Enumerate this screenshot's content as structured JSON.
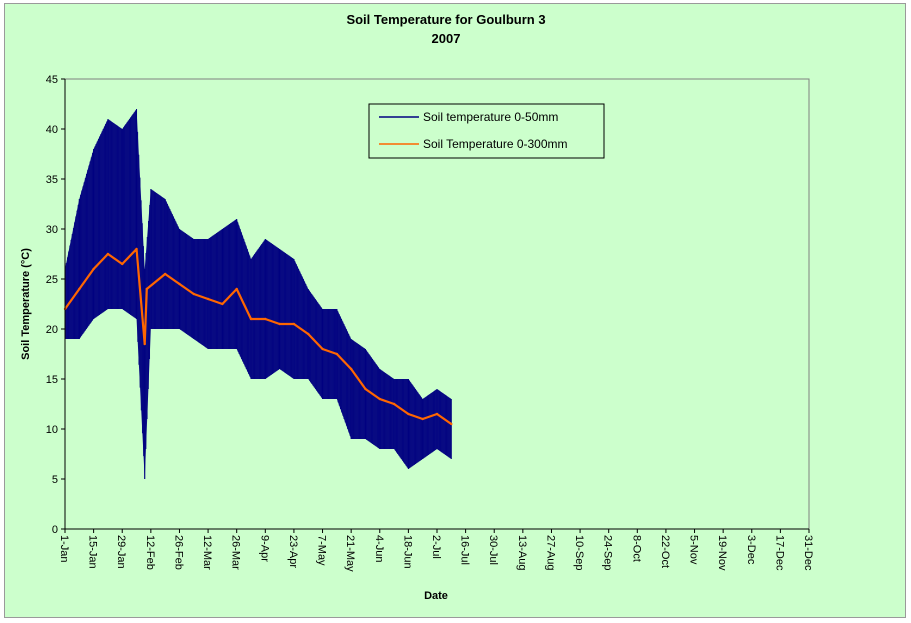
{
  "chart_data": {
    "type": "line",
    "title": "Soil Temperature for Goulburn 3",
    "subtitle": "2007",
    "xlabel": "Date",
    "ylabel": "Soil Temperature (°C)",
    "ylim": [
      0,
      45
    ],
    "yticks": [
      0,
      5,
      10,
      15,
      20,
      25,
      30,
      35,
      40,
      45
    ],
    "x_tick_labels": [
      "1-Jan",
      "15-Jan",
      "29-Jan",
      "12-Feb",
      "26-Feb",
      "12-Mar",
      "26-Mar",
      "9-Apr",
      "23-Apr",
      "7-May",
      "21-May",
      "4-Jun",
      "18-Jun",
      "2-Jul",
      "16-Jul",
      "30-Jul",
      "13-Aug",
      "27-Aug",
      "10-Sep",
      "24-Sep",
      "8-Oct",
      "22-Oct",
      "5-Nov",
      "19-Nov",
      "3-Dec",
      "17-Dec",
      "31-Dec"
    ],
    "grid": false,
    "legend_position": "top-center",
    "series": [
      {
        "name": "Soil temperature 0-50mm",
        "color": "#000080",
        "points": [
          {
            "x": "1-Jan",
            "min": 19,
            "max": 26
          },
          {
            "x": "8-Jan",
            "min": 19,
            "max": 33
          },
          {
            "x": "15-Jan",
            "min": 21,
            "max": 38
          },
          {
            "x": "22-Jan",
            "min": 22,
            "max": 41
          },
          {
            "x": "29-Jan",
            "min": 22,
            "max": 40
          },
          {
            "x": "5-Feb",
            "min": 21,
            "max": 42
          },
          {
            "x": "9-Feb",
            "min": 5,
            "max": 26
          },
          {
            "x": "12-Feb",
            "min": 20,
            "max": 34
          },
          {
            "x": "19-Feb",
            "min": 20,
            "max": 33
          },
          {
            "x": "26-Feb",
            "min": 20,
            "max": 30
          },
          {
            "x": "5-Mar",
            "min": 19,
            "max": 29
          },
          {
            "x": "12-Mar",
            "min": 18,
            "max": 29
          },
          {
            "x": "19-Mar",
            "min": 18,
            "max": 30
          },
          {
            "x": "26-Mar",
            "min": 18,
            "max": 31
          },
          {
            "x": "2-Apr",
            "min": 15,
            "max": 27
          },
          {
            "x": "9-Apr",
            "min": 15,
            "max": 29
          },
          {
            "x": "16-Apr",
            "min": 16,
            "max": 28
          },
          {
            "x": "23-Apr",
            "min": 15,
            "max": 27
          },
          {
            "x": "30-Apr",
            "min": 15,
            "max": 24
          },
          {
            "x": "7-May",
            "min": 13,
            "max": 22
          },
          {
            "x": "14-May",
            "min": 13,
            "max": 22
          },
          {
            "x": "21-May",
            "min": 9,
            "max": 19
          },
          {
            "x": "28-May",
            "min": 9,
            "max": 18
          },
          {
            "x": "4-Jun",
            "min": 8,
            "max": 16
          },
          {
            "x": "11-Jun",
            "min": 8,
            "max": 15
          },
          {
            "x": "18-Jun",
            "min": 6,
            "max": 15
          },
          {
            "x": "25-Jun",
            "min": 7,
            "max": 13
          },
          {
            "x": "2-Jul",
            "min": 8,
            "max": 14
          },
          {
            "x": "9-Jul",
            "min": 7,
            "max": 13
          }
        ]
      },
      {
        "name": "Soil Temperature  0-300mm",
        "color": "#ff6600",
        "points": [
          {
            "x": "1-Jan",
            "y": 22
          },
          {
            "x": "8-Jan",
            "y": 24
          },
          {
            "x": "15-Jan",
            "y": 26
          },
          {
            "x": "22-Jan",
            "y": 27.5
          },
          {
            "x": "29-Jan",
            "y": 26.5
          },
          {
            "x": "5-Feb",
            "y": 28
          },
          {
            "x": "9-Feb",
            "y": 18.5
          },
          {
            "x": "10-Feb",
            "y": 24
          },
          {
            "x": "19-Feb",
            "y": 25.5
          },
          {
            "x": "26-Feb",
            "y": 24.5
          },
          {
            "x": "5-Mar",
            "y": 23.5
          },
          {
            "x": "12-Mar",
            "y": 23
          },
          {
            "x": "19-Mar",
            "y": 22.5
          },
          {
            "x": "26-Mar",
            "y": 24
          },
          {
            "x": "2-Apr",
            "y": 21
          },
          {
            "x": "9-Apr",
            "y": 21
          },
          {
            "x": "16-Apr",
            "y": 20.5
          },
          {
            "x": "23-Apr",
            "y": 20.5
          },
          {
            "x": "30-Apr",
            "y": 19.5
          },
          {
            "x": "7-May",
            "y": 18
          },
          {
            "x": "14-May",
            "y": 17.5
          },
          {
            "x": "21-May",
            "y": 16
          },
          {
            "x": "28-May",
            "y": 14
          },
          {
            "x": "4-Jun",
            "y": 13
          },
          {
            "x": "11-Jun",
            "y": 12.5
          },
          {
            "x": "18-Jun",
            "y": 11.5
          },
          {
            "x": "25-Jun",
            "y": 11
          },
          {
            "x": "2-Jul",
            "y": 11.5
          },
          {
            "x": "9-Jul",
            "y": 10.5
          }
        ]
      }
    ]
  }
}
